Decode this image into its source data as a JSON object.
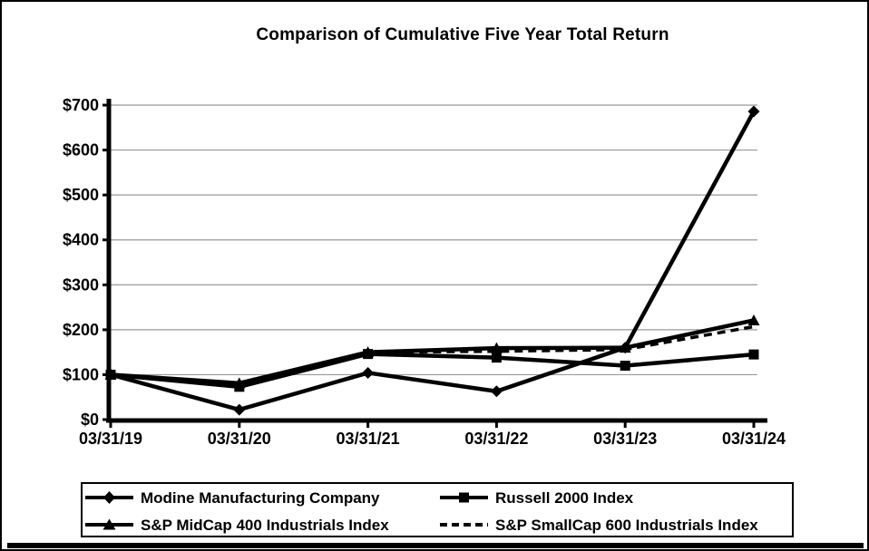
{
  "title": "Comparison of Cumulative Five Year Total Return",
  "chart_data": {
    "type": "line",
    "title": "Comparison of Cumulative Five Year Total Return",
    "xlabel": "",
    "ylabel": "",
    "categories": [
      "03/31/19",
      "03/31/20",
      "03/31/21",
      "03/31/22",
      "03/31/23",
      "03/31/24"
    ],
    "series": [
      {
        "name": "Modine Manufacturing Company",
        "marker": "diamond",
        "line": "solid",
        "values": [
          100,
          22,
          104,
          63,
          160,
          686
        ]
      },
      {
        "name": "Russell 2000 Index",
        "marker": "square",
        "line": "solid",
        "values": [
          100,
          73,
          146,
          138,
          120,
          145
        ]
      },
      {
        "name": "S&P MidCap 400 Industrials Index",
        "marker": "triangle",
        "line": "solid",
        "values": [
          100,
          81,
          150,
          159,
          160,
          221
        ]
      },
      {
        "name": "S&P SmallCap 600 Industrials Index",
        "marker": "none",
        "line": "dashed",
        "values": [
          100,
          79,
          150,
          152,
          156,
          207
        ]
      }
    ],
    "ylim": [
      0,
      700
    ],
    "ytick_step": 100,
    "ytick_labels": [
      "$0",
      "$100",
      "$200",
      "$300",
      "$400",
      "$500",
      "$600",
      "$700"
    ],
    "grid": true,
    "legend_position": "bottom",
    "colors": {
      "series": "#000000",
      "grid": "#999999",
      "background": "#ffffff"
    }
  }
}
